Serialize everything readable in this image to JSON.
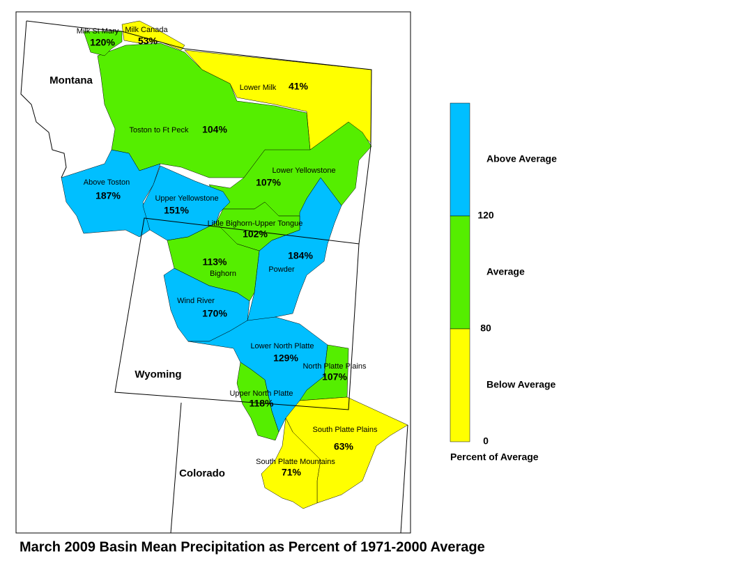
{
  "title": "March 2009 Basin Mean Precipitation as Percent of 1971-2000 Average",
  "states": [
    "Montana",
    "Wyoming",
    "Colorado"
  ],
  "basins": [
    {
      "name": "Lower Milk",
      "percent": "41%",
      "color": "#ffff00"
    },
    {
      "name": "Toston to Ft Peck",
      "percent": "104%",
      "color": "#55ee00"
    },
    {
      "name": "Milk St Mary",
      "percent": "120%",
      "color": "#55ee00"
    },
    {
      "name": "Milk Canada",
      "percent": "53%",
      "color": "#ffff00"
    },
    {
      "name": "Lower Yellowstone",
      "percent": "107%",
      "color": "#55ee00"
    },
    {
      "name": "Above Toston",
      "percent": "187%",
      "color": "#00bfff"
    },
    {
      "name": "Upper Yellowstone",
      "percent": "151%",
      "color": "#00bfff"
    },
    {
      "name": "Powder",
      "percent": "184%",
      "color": "#00bfff"
    },
    {
      "name": "Little Bighorn-Upper Tongue",
      "percent": "102%",
      "color": "#55ee00"
    },
    {
      "name": "Bighorn",
      "percent": "113%",
      "color": "#55ee00"
    },
    {
      "name": "Wind River",
      "percent": "170%",
      "color": "#00bfff"
    },
    {
      "name": "Lower North Platte",
      "percent": "129%",
      "color": "#00bfff"
    },
    {
      "name": "North Platte Plains",
      "percent": "107%",
      "color": "#55ee00"
    },
    {
      "name": "Upper North Platte",
      "percent": "118%",
      "color": "#55ee00"
    },
    {
      "name": "South Platte Plains",
      "percent": "63%",
      "color": "#ffff00"
    },
    {
      "name": "South Platte Mountains",
      "percent": "71%",
      "color": "#ffff00"
    }
  ],
  "legend": {
    "entries": [
      {
        "label": "Above Average",
        "color": "#00bfff"
      },
      {
        "label": "Average",
        "color": "#55ee00"
      },
      {
        "label": "Below Average",
        "color": "#ffff00"
      }
    ],
    "breaks": [
      "120",
      "80",
      "0"
    ],
    "caption": "Percent of Average"
  }
}
